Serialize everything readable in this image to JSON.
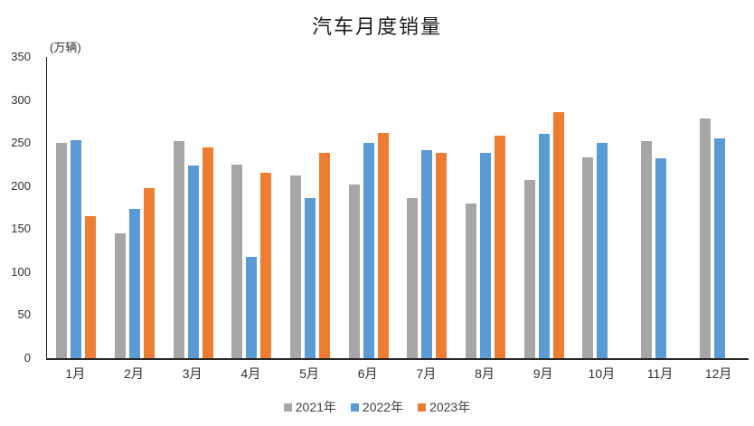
{
  "chart_data": {
    "type": "bar",
    "title": "汽车月度销量",
    "unit_label": "(万辆)",
    "categories": [
      "1月",
      "2月",
      "3月",
      "4月",
      "5月",
      "6月",
      "7月",
      "8月",
      "9月",
      "10月",
      "11月",
      "12月"
    ],
    "series": [
      {
        "name": "2021年",
        "color": "#A6A6A6",
        "values": [
          250.3,
          145.5,
          252.6,
          225.2,
          212.8,
          201.5,
          186.4,
          179.9,
          206.7,
          233.3,
          252.2,
          278.6
        ]
      },
      {
        "name": "2022年",
        "color": "#5B9BD5",
        "values": [
          253.1,
          173.7,
          223.4,
          118.1,
          186.2,
          250.2,
          242.0,
          238.3,
          261.0,
          250.5,
          232.8,
          255.6
        ]
      },
      {
        "name": "2023年",
        "color": "#ED7D31",
        "values": [
          164.9,
          197.6,
          245.1,
          215.9,
          238.2,
          262.2,
          238.8,
          258.4,
          285.8,
          null,
          null,
          null
        ]
      }
    ],
    "y_axis": {
      "min": 0,
      "max": 350,
      "tick_step": 50,
      "ticks": [
        0,
        50,
        100,
        150,
        200,
        250,
        300,
        350
      ]
    },
    "xlabel": "",
    "ylabel": "",
    "grid": false,
    "legend_position": "bottom"
  }
}
